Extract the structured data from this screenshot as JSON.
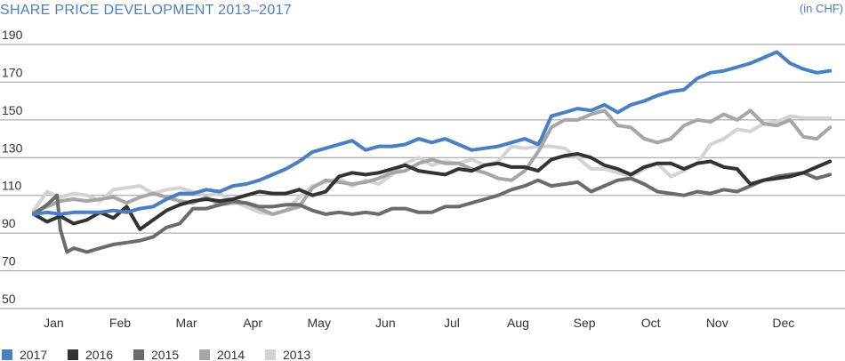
{
  "chart_data": {
    "type": "line",
    "title": "SHARE PRICE DEVELOPMENT 2013–2017",
    "unit_label": "(in CHF)",
    "title_color": "#4a7fc1",
    "xlabel": "",
    "ylabel": "",
    "ylim": [
      50,
      190
    ],
    "y_ticks": [
      50,
      70,
      90,
      110,
      130,
      150,
      170,
      190
    ],
    "grid": true,
    "legend_position": "bottom-left",
    "x_ticks": [
      "Jan",
      "Feb",
      "Mar",
      "Apr",
      "May",
      "Jun",
      "Jul",
      "Aug",
      "Sep",
      "Oct",
      "Nov",
      "Dec"
    ],
    "x_tick_positions": [
      0.3,
      1.3,
      2.3,
      3.3,
      4.3,
      5.3,
      6.3,
      7.3,
      8.3,
      9.3,
      10.3,
      11.3
    ],
    "xlim": [
      0,
      12.2
    ],
    "series": [
      {
        "name": "2013",
        "color": "#d3d3d3",
        "x": [
          0,
          0.2,
          0.4,
          0.6,
          0.8,
          1.0,
          1.2,
          1.4,
          1.6,
          1.8,
          2.0,
          2.2,
          2.4,
          2.6,
          2.8,
          3.0,
          3.2,
          3.4,
          3.6,
          3.8,
          4.0,
          4.2,
          4.4,
          4.6,
          4.8,
          5.0,
          5.2,
          5.4,
          5.6,
          5.8,
          6.0,
          6.2,
          6.4,
          6.6,
          6.8,
          7.0,
          7.2,
          7.4,
          7.6,
          7.8,
          8.0,
          8.2,
          8.4,
          8.6,
          8.8,
          9.0,
          9.2,
          9.4,
          9.6,
          9.8,
          10.0,
          10.2,
          10.4,
          10.6,
          10.8,
          11.0,
          11.2,
          11.4,
          11.6,
          11.8,
          12.0
        ],
        "values": [
          102,
          112,
          109,
          111,
          110,
          107,
          113,
          114,
          115,
          111,
          113,
          114,
          112,
          110,
          111,
          107,
          104,
          101,
          100,
          102,
          109,
          115,
          117,
          119,
          115,
          118,
          116,
          121,
          127,
          130,
          126,
          128,
          127,
          129,
          126,
          128,
          136,
          135,
          136,
          136,
          135,
          130,
          124,
          124,
          122,
          120,
          124,
          127,
          120,
          123,
          127,
          137,
          140,
          145,
          144,
          148,
          149,
          152,
          151,
          151,
          151
        ]
      },
      {
        "name": "2014",
        "color": "#a6a6a6",
        "x": [
          0,
          0.2,
          0.4,
          0.6,
          0.8,
          1.0,
          1.2,
          1.4,
          1.6,
          1.8,
          2.0,
          2.2,
          2.4,
          2.6,
          2.8,
          3.0,
          3.2,
          3.4,
          3.6,
          3.8,
          4.0,
          4.2,
          4.4,
          4.6,
          4.8,
          5.0,
          5.2,
          5.4,
          5.6,
          5.8,
          6.0,
          6.2,
          6.4,
          6.6,
          6.8,
          7.0,
          7.2,
          7.4,
          7.6,
          7.8,
          8.0,
          8.2,
          8.4,
          8.6,
          8.8,
          9.0,
          9.2,
          9.4,
          9.6,
          9.8,
          10.0,
          10.2,
          10.4,
          10.6,
          10.8,
          11.0,
          11.2,
          11.4,
          11.6,
          11.8,
          12.0
        ],
        "values": [
          101,
          104,
          107,
          108,
          107,
          108,
          109,
          106,
          109,
          111,
          109,
          107,
          106,
          109,
          105,
          106,
          106,
          103,
          100,
          102,
          104,
          114,
          118,
          117,
          116,
          117,
          119,
          122,
          123,
          127,
          129,
          127,
          127,
          124,
          122,
          119,
          118,
          123,
          133,
          146,
          150,
          150,
          153,
          155,
          147,
          146,
          140,
          138,
          140,
          147,
          150,
          149,
          153,
          150,
          155,
          148,
          147,
          150,
          141,
          140,
          146
        ]
      },
      {
        "name": "2015",
        "color": "#6b6b6b",
        "x": [
          0,
          0.2,
          0.35,
          0.4,
          0.5,
          0.6,
          0.8,
          1.0,
          1.2,
          1.4,
          1.6,
          1.8,
          2.0,
          2.2,
          2.4,
          2.6,
          2.8,
          3.0,
          3.2,
          3.4,
          3.6,
          3.8,
          4.0,
          4.2,
          4.4,
          4.6,
          4.8,
          5.0,
          5.2,
          5.4,
          5.6,
          5.8,
          6.0,
          6.2,
          6.4,
          6.6,
          6.8,
          7.0,
          7.2,
          7.4,
          7.6,
          7.8,
          8.0,
          8.2,
          8.4,
          8.6,
          8.8,
          9.0,
          9.2,
          9.4,
          9.6,
          9.8,
          10.0,
          10.2,
          10.4,
          10.6,
          10.8,
          11.0,
          11.2,
          11.4,
          11.6,
          11.8,
          12.0
        ],
        "values": [
          100,
          105,
          110,
          92,
          80,
          82,
          80,
          82,
          84,
          85,
          86,
          88,
          93,
          95,
          103,
          103,
          105,
          107,
          106,
          104,
          104,
          105,
          105,
          102,
          100,
          101,
          100,
          101,
          100,
          103,
          103,
          101,
          101,
          104,
          104,
          106,
          108,
          110,
          113,
          115,
          118,
          115,
          116,
          117,
          112,
          115,
          118,
          119,
          116,
          112,
          111,
          110,
          112,
          111,
          113,
          112,
          115,
          118,
          120,
          121,
          122,
          119,
          121
        ]
      },
      {
        "name": "2016",
        "color": "#333333",
        "x": [
          0,
          0.2,
          0.4,
          0.6,
          0.8,
          1.0,
          1.2,
          1.4,
          1.6,
          1.8,
          2.0,
          2.2,
          2.4,
          2.6,
          2.8,
          3.0,
          3.2,
          3.4,
          3.6,
          3.8,
          4.0,
          4.2,
          4.4,
          4.6,
          4.8,
          5.0,
          5.2,
          5.4,
          5.6,
          5.8,
          6.0,
          6.2,
          6.4,
          6.6,
          6.8,
          7.0,
          7.2,
          7.4,
          7.6,
          7.8,
          8.0,
          8.2,
          8.4,
          8.6,
          8.8,
          9.0,
          9.2,
          9.4,
          9.6,
          9.8,
          10.0,
          10.2,
          10.4,
          10.6,
          10.8,
          11.0,
          11.2,
          11.4,
          11.6,
          11.8,
          12.0
        ],
        "values": [
          100,
          96,
          99,
          95,
          97,
          101,
          98,
          104,
          92,
          97,
          102,
          105,
          107,
          108,
          107,
          108,
          110,
          112,
          111,
          111,
          113,
          110,
          112,
          120,
          122,
          121,
          122,
          124,
          126,
          123,
          122,
          121,
          124,
          123,
          126,
          127,
          125,
          125,
          123,
          129,
          131,
          132,
          130,
          126,
          124,
          121,
          125,
          127,
          127,
          124,
          127,
          128,
          125,
          124,
          116,
          118,
          119,
          120,
          122,
          125,
          128
        ]
      },
      {
        "name": "2017",
        "color": "#4a7fc1",
        "x": [
          0,
          0.2,
          0.4,
          0.6,
          0.8,
          1.0,
          1.2,
          1.4,
          1.6,
          1.8,
          2.0,
          2.2,
          2.4,
          2.6,
          2.8,
          3.0,
          3.2,
          3.4,
          3.6,
          3.8,
          4.0,
          4.2,
          4.4,
          4.6,
          4.8,
          5.0,
          5.2,
          5.4,
          5.6,
          5.8,
          6.0,
          6.2,
          6.4,
          6.6,
          6.8,
          7.0,
          7.2,
          7.4,
          7.6,
          7.65,
          7.8,
          8.0,
          8.2,
          8.4,
          8.6,
          8.8,
          9.0,
          9.2,
          9.4,
          9.6,
          9.8,
          10.0,
          10.2,
          10.4,
          10.6,
          10.8,
          11.0,
          11.2,
          11.4,
          11.6,
          11.8,
          12.0
        ],
        "values": [
          100,
          101,
          100,
          101,
          101,
          101,
          102,
          101,
          103,
          104,
          108,
          111,
          111,
          113,
          112,
          115,
          116,
          118,
          121,
          124,
          128,
          133,
          135,
          137,
          139,
          134,
          136,
          136,
          137,
          140,
          138,
          140,
          137,
          134,
          135,
          136,
          138,
          140,
          137,
          140,
          152,
          154,
          156,
          155,
          158,
          154,
          158,
          160,
          163,
          165,
          166,
          172,
          175,
          176,
          178,
          180,
          183,
          186,
          180,
          177,
          175,
          176
        ]
      }
    ]
  }
}
